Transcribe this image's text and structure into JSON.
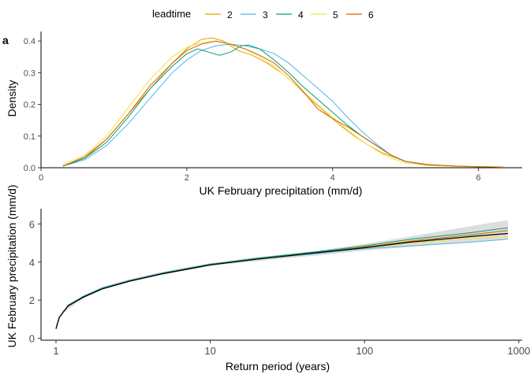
{
  "legend": {
    "title": "leadtime",
    "items": [
      {
        "label": "2",
        "color": "#E69F00"
      },
      {
        "label": "3",
        "color": "#56B4E9"
      },
      {
        "label": "4",
        "color": "#009E73"
      },
      {
        "label": "5",
        "color": "#F0E442"
      },
      {
        "label": "6",
        "color": "#D55E00"
      }
    ]
  },
  "panel_label": "a",
  "chart_data": [
    {
      "type": "line",
      "subtype": "density",
      "xlabel": "UK February precipitation (mm/d)",
      "ylabel": "Density",
      "xlim": [
        0,
        6.6
      ],
      "ylim": [
        0,
        0.43
      ],
      "xticks": [
        "0",
        "2",
        "4",
        "6"
      ],
      "yticks": [
        "0.0",
        "0.1",
        "0.2",
        "0.3",
        "0.4"
      ],
      "grid": false,
      "series": [
        {
          "name": "2",
          "color": "#E69F00",
          "x": [
            0.3,
            0.6,
            0.9,
            1.2,
            1.5,
            1.8,
            2.0,
            2.2,
            2.35,
            2.5,
            2.7,
            2.9,
            3.1,
            3.3,
            3.5,
            3.7,
            3.9,
            4.1,
            4.3,
            4.5,
            4.7,
            5.0,
            5.3,
            5.7,
            6.0,
            6.35
          ],
          "y": [
            0.005,
            0.03,
            0.09,
            0.17,
            0.25,
            0.33,
            0.375,
            0.405,
            0.41,
            0.4,
            0.37,
            0.355,
            0.33,
            0.3,
            0.26,
            0.215,
            0.175,
            0.135,
            0.1,
            0.07,
            0.045,
            0.02,
            0.008,
            0.004,
            0.003,
            0.002
          ]
        },
        {
          "name": "3",
          "color": "#56B4E9",
          "x": [
            0.3,
            0.6,
            0.9,
            1.2,
            1.5,
            1.8,
            2.0,
            2.2,
            2.4,
            2.6,
            2.8,
            3.0,
            3.2,
            3.4,
            3.6,
            3.8,
            4.0,
            4.2,
            4.4,
            4.6,
            4.8,
            5.0,
            5.3,
            5.7,
            6.0,
            6.35
          ],
          "y": [
            0.005,
            0.025,
            0.07,
            0.14,
            0.22,
            0.3,
            0.34,
            0.37,
            0.385,
            0.39,
            0.385,
            0.375,
            0.36,
            0.33,
            0.29,
            0.25,
            0.21,
            0.16,
            0.115,
            0.075,
            0.04,
            0.02,
            0.01,
            0.005,
            0.003,
            0.002
          ]
        },
        {
          "name": "4",
          "color": "#009E73",
          "x": [
            0.3,
            0.6,
            0.9,
            1.2,
            1.5,
            1.8,
            2.0,
            2.15,
            2.3,
            2.45,
            2.6,
            2.75,
            2.85,
            3.0,
            3.2,
            3.4,
            3.6,
            3.8,
            4.0,
            4.2,
            4.4,
            4.6,
            4.8,
            5.0,
            5.3,
            5.7,
            6.0,
            6.35
          ],
          "y": [
            0.005,
            0.03,
            0.08,
            0.16,
            0.25,
            0.32,
            0.36,
            0.375,
            0.365,
            0.355,
            0.365,
            0.385,
            0.387,
            0.375,
            0.34,
            0.3,
            0.255,
            0.215,
            0.175,
            0.135,
            0.1,
            0.07,
            0.04,
            0.02,
            0.01,
            0.005,
            0.003,
            0.002
          ]
        },
        {
          "name": "5",
          "color": "#F0E442",
          "x": [
            0.3,
            0.6,
            0.9,
            1.2,
            1.5,
            1.8,
            2.0,
            2.2,
            2.4,
            2.6,
            2.8,
            3.0,
            3.2,
            3.4,
            3.6,
            3.8,
            4.0,
            4.2,
            4.4,
            4.6,
            4.8,
            5.0,
            5.3,
            5.7,
            6.0,
            6.35
          ],
          "y": [
            0.01,
            0.04,
            0.1,
            0.19,
            0.28,
            0.35,
            0.38,
            0.395,
            0.4,
            0.39,
            0.375,
            0.35,
            0.32,
            0.28,
            0.24,
            0.2,
            0.16,
            0.12,
            0.085,
            0.055,
            0.03,
            0.015,
            0.007,
            0.004,
            0.003,
            0.002
          ]
        },
        {
          "name": "6",
          "color": "#D55E00",
          "x": [
            0.3,
            0.6,
            0.9,
            1.2,
            1.5,
            1.8,
            2.0,
            2.2,
            2.4,
            2.6,
            2.8,
            3.0,
            3.2,
            3.4,
            3.6,
            3.8,
            4.0,
            4.2,
            4.4,
            4.6,
            4.8,
            5.0,
            5.3,
            5.7,
            6.0,
            6.35
          ],
          "y": [
            0.005,
            0.035,
            0.09,
            0.17,
            0.26,
            0.33,
            0.37,
            0.39,
            0.4,
            0.39,
            0.375,
            0.355,
            0.33,
            0.29,
            0.24,
            0.185,
            0.155,
            0.13,
            0.1,
            0.07,
            0.04,
            0.02,
            0.01,
            0.005,
            0.003,
            0.002
          ]
        }
      ]
    },
    {
      "type": "line",
      "subtype": "return-period",
      "xscale": "log",
      "xlabel": "Return period (years)",
      "ylabel": "UK February precipitation (mm/d)",
      "xlim": [
        0.8,
        1050
      ],
      "ylim": [
        -0.1,
        6.8
      ],
      "xticks": [
        "1",
        "10",
        "100",
        "1000"
      ],
      "yticks": [
        "0",
        "2",
        "4",
        "6"
      ],
      "grid": false,
      "confidence_band": {
        "color": "#d9d9d9",
        "x": [
          1,
          1.1,
          1.5,
          2,
          3,
          5,
          10,
          20,
          50,
          100,
          200,
          500,
          850
        ],
        "lower": [
          0.5,
          1.3,
          2.1,
          2.55,
          2.95,
          3.35,
          3.8,
          4.05,
          4.35,
          4.6,
          4.8,
          5.05,
          5.2
        ],
        "upper": [
          0.7,
          1.45,
          2.25,
          2.7,
          3.1,
          3.5,
          3.95,
          4.25,
          4.6,
          4.95,
          5.35,
          5.9,
          6.2
        ]
      },
      "series": [
        {
          "name": "2",
          "color": "#E69F00",
          "x": [
            1,
            1.05,
            1.2,
            1.5,
            2,
            3,
            5,
            10,
            20,
            50,
            100,
            200,
            500,
            850
          ],
          "y": [
            0.5,
            1.1,
            1.7,
            2.15,
            2.6,
            3.0,
            3.4,
            3.85,
            4.15,
            4.5,
            4.8,
            5.05,
            5.35,
            5.5
          ]
        },
        {
          "name": "3",
          "color": "#56B4E9",
          "x": [
            1,
            1.05,
            1.2,
            1.5,
            2,
            3,
            5,
            10,
            20,
            50,
            100,
            200,
            500,
            850
          ],
          "y": [
            0.5,
            1.1,
            1.75,
            2.2,
            2.65,
            3.05,
            3.45,
            3.9,
            4.15,
            4.45,
            4.7,
            4.85,
            5.05,
            5.2
          ]
        },
        {
          "name": "4",
          "color": "#009E73",
          "x": [
            1,
            1.05,
            1.2,
            1.5,
            2,
            3,
            5,
            10,
            20,
            50,
            100,
            200,
            500,
            850
          ],
          "y": [
            0.5,
            1.1,
            1.72,
            2.18,
            2.62,
            3.02,
            3.42,
            3.88,
            4.2,
            4.55,
            4.85,
            5.2,
            5.55,
            5.8
          ]
        },
        {
          "name": "5",
          "color": "#F0E442",
          "x": [
            1,
            1.05,
            1.2,
            1.5,
            2,
            3,
            5,
            10,
            20,
            50,
            100,
            200,
            500,
            850
          ],
          "y": [
            0.5,
            1.1,
            1.7,
            2.15,
            2.6,
            3.0,
            3.4,
            3.85,
            4.15,
            4.5,
            4.75,
            5.0,
            5.25,
            5.35
          ]
        },
        {
          "name": "6",
          "color": "#D55E00",
          "x": [
            1,
            1.05,
            1.2,
            1.5,
            2,
            3,
            5,
            10,
            20,
            50,
            100,
            200,
            500,
            850
          ],
          "y": [
            0.5,
            1.1,
            1.7,
            2.15,
            2.6,
            3.0,
            3.4,
            3.85,
            4.15,
            4.5,
            4.78,
            5.1,
            5.45,
            5.65
          ]
        },
        {
          "name": "",
          "color": "#000000",
          "x": [
            1,
            1.05,
            1.2,
            1.5,
            2,
            3,
            5,
            10,
            20,
            50,
            100,
            200,
            500,
            850
          ],
          "y": [
            0.5,
            1.1,
            1.7,
            2.15,
            2.6,
            3.0,
            3.4,
            3.85,
            4.15,
            4.5,
            4.75,
            5.05,
            5.35,
            5.5
          ]
        }
      ]
    }
  ]
}
